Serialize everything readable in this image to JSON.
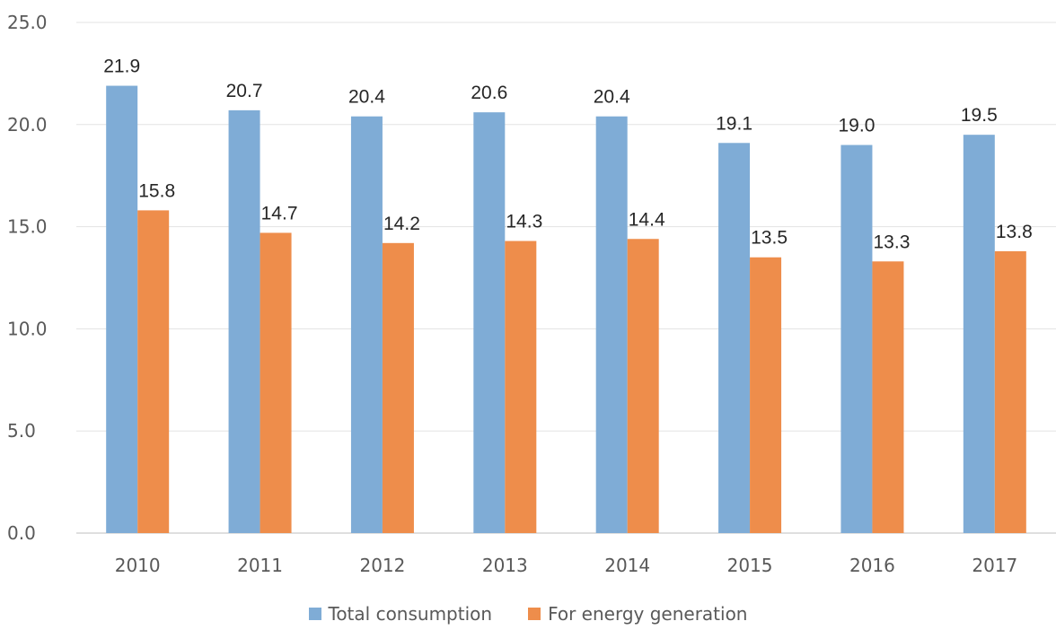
{
  "chart_data": {
    "type": "bar",
    "title": "",
    "xlabel": "",
    "ylabel": "",
    "ylim": [
      0,
      25
    ],
    "y_ticks": [
      "0.0",
      "5.0",
      "10.0",
      "15.0",
      "20.0",
      "25.0"
    ],
    "categories": [
      "2010",
      "2011",
      "2012",
      "2013",
      "2014",
      "2015",
      "2016",
      "2017"
    ],
    "series": [
      {
        "name": "Total consumption",
        "color": "#7facd6",
        "values": [
          21.9,
          20.7,
          20.4,
          20.6,
          20.4,
          19.1,
          19.0,
          19.5
        ],
        "labels": [
          "21.9",
          "20.7",
          "20.4",
          "20.6",
          "20.4",
          "19.1",
          "19.0",
          "19.5"
        ]
      },
      {
        "name": "For energy generation",
        "color": "#ee8d4b",
        "values": [
          15.8,
          14.7,
          14.2,
          14.3,
          14.4,
          13.5,
          13.3,
          13.8
        ],
        "labels": [
          "15.8",
          "14.7",
          "14.2",
          "14.3",
          "14.4",
          "13.5",
          "13.3",
          "13.8"
        ]
      }
    ],
    "gridlines": true,
    "legend_position": "bottom"
  }
}
